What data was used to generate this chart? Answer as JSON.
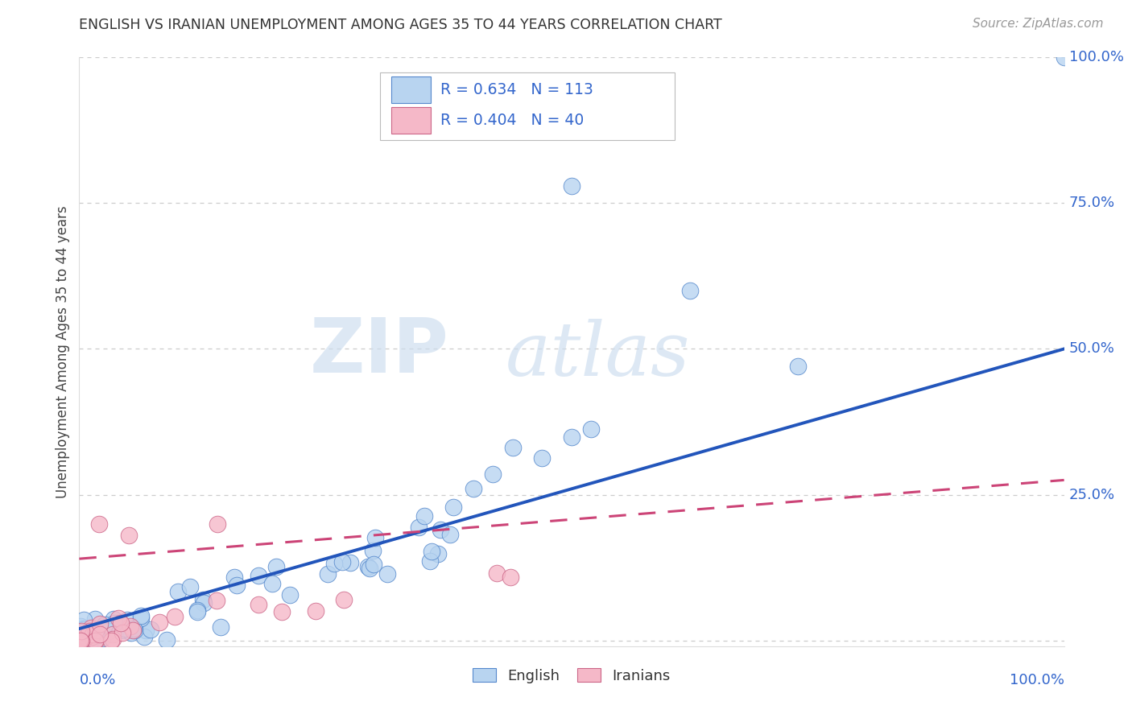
{
  "title": "ENGLISH VS IRANIAN UNEMPLOYMENT AMONG AGES 35 TO 44 YEARS CORRELATION CHART",
  "source": "Source: ZipAtlas.com",
  "ylabel": "Unemployment Among Ages 35 to 44 years",
  "xlim": [
    0,
    1.0
  ],
  "ylim": [
    -0.01,
    1.0
  ],
  "ytick_positions": [
    0.0,
    0.25,
    0.5,
    0.75,
    1.0
  ],
  "yticklabels": [
    "",
    "25.0%",
    "50.0%",
    "75.0%",
    "100.0%"
  ],
  "grid_color": "#cccccc",
  "background_color": "#ffffff",
  "english_color": "#b8d4f0",
  "english_edge_color": "#5588cc",
  "iranian_color": "#f5b8c8",
  "iranian_edge_color": "#cc6688",
  "english_line_color": "#2255bb",
  "iranian_line_color": "#cc4477",
  "legend_r_english": "R = 0.634",
  "legend_n_english": "N = 113",
  "legend_r_iranian": "R = 0.404",
  "legend_n_iranian": "N = 40",
  "watermark_zip": "ZIP",
  "watermark_atlas": "atlas",
  "eng_line_x0": 0.0,
  "eng_line_y0": 0.02,
  "eng_line_x1": 1.0,
  "eng_line_y1": 0.5,
  "iran_line_x0": 0.0,
  "iran_line_y0": 0.14,
  "iran_line_x1": 1.0,
  "iran_line_y1": 0.275
}
